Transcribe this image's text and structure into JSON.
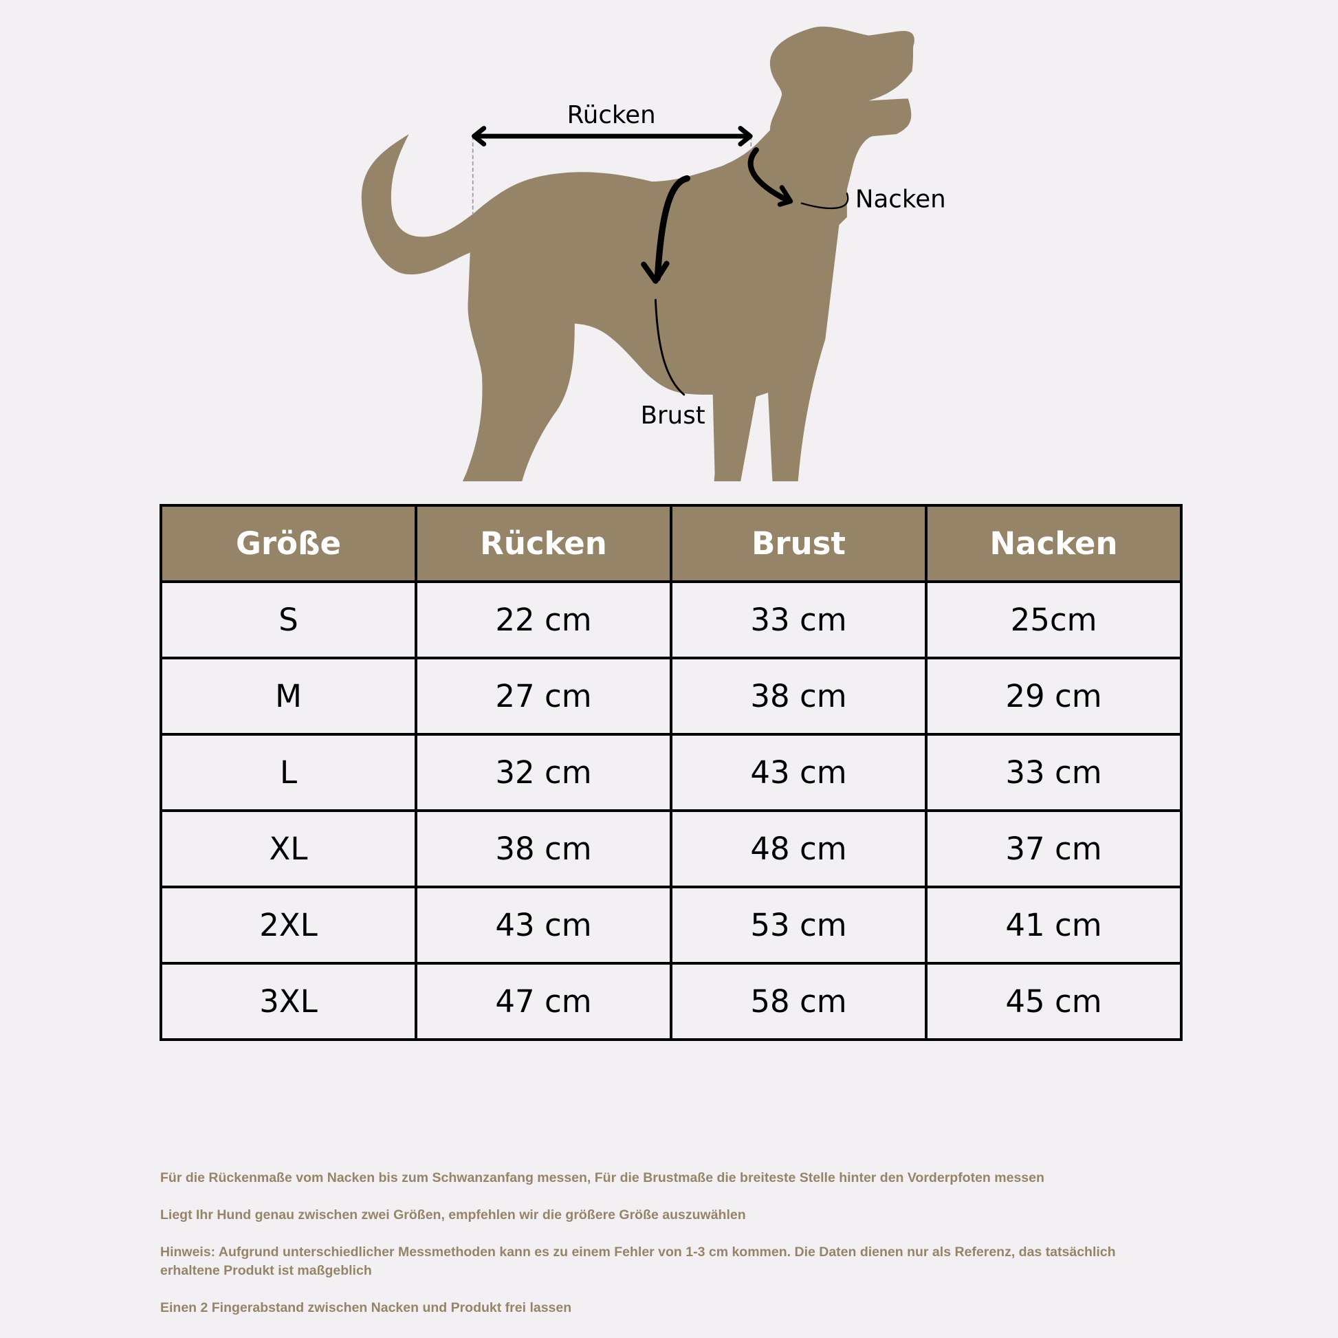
{
  "diagram": {
    "labels": {
      "back": "Rücken",
      "neck": "Nacken",
      "chest": "Brust"
    },
    "colors": {
      "dog": "#958468",
      "arrow": "#000000"
    }
  },
  "table": {
    "headers": [
      "Größe",
      "Rücken",
      "Brust",
      "Nacken"
    ],
    "rows": [
      [
        "S",
        "22 cm",
        "33 cm",
        "25cm"
      ],
      [
        "M",
        "27 cm",
        "38 cm",
        "29 cm"
      ],
      [
        "L",
        "32 cm",
        "43 cm",
        "33 cm"
      ],
      [
        "XL",
        "38 cm",
        "48 cm",
        "37 cm"
      ],
      [
        "2XL",
        "43 cm",
        "53 cm",
        "41 cm"
      ],
      [
        "3XL",
        "47 cm",
        "58 cm",
        "45 cm"
      ]
    ],
    "colors": {
      "header_bg": "#958468",
      "header_text": "#ffffff"
    }
  },
  "notes": [
    "Für die Rückenmaße vom Nacken bis zum Schwanzanfang messen, Für die Brustmaße die breiteste Stelle hinter den Vorderpfoten messen",
    "Liegt Ihr Hund genau zwischen zwei Größen, empfehlen wir die größere Größe auszuwählen",
    "Hinweis: Aufgrund unterschiedlicher Messmethoden kann es zu einem Fehler von 1-3 cm kommen. Die Daten dienen nur als Referenz, das tatsächlich erhaltene Produkt ist maßgeblich",
    "Einen 2 Fingerabstand zwischen Nacken und Produkt frei lassen"
  ]
}
